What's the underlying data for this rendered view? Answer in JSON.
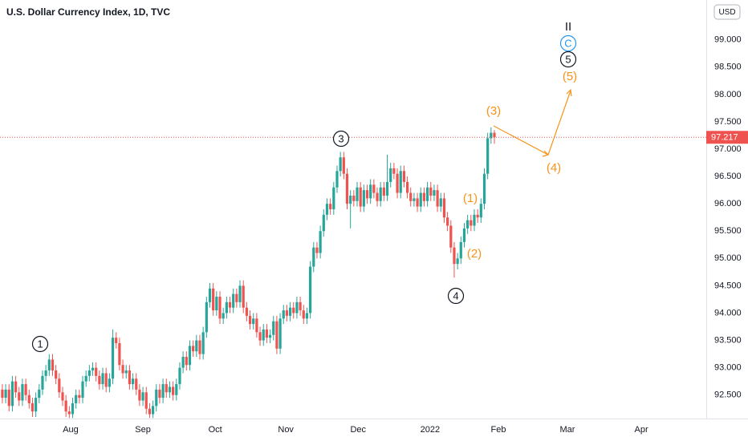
{
  "chart_data": {
    "type": "candlestick",
    "title": "U.S. Dollar Currency Index, 1D, TVC",
    "currency": "USD",
    "up_color": "#26a69a",
    "down_color": "#ef5350",
    "open": [
      92.6,
      92.45,
      92.6,
      92.3,
      92.75,
      92.55,
      92.4,
      92.7,
      92.5,
      92.35,
      92.2,
      92.45,
      92.6,
      92.85,
      92.95,
      93.15,
      92.95,
      92.8,
      92.55,
      92.4,
      92.2,
      92.15,
      92.35,
      92.5,
      92.45,
      92.75,
      92.85,
      92.95,
      93.0,
      92.85,
      92.7,
      92.9,
      92.65,
      92.8,
      93.55,
      93.45,
      93.05,
      92.9,
      92.95,
      92.7,
      92.8,
      92.6,
      92.4,
      92.55,
      92.25,
      92.15,
      92.3,
      92.6,
      92.45,
      92.7,
      92.55,
      92.65,
      92.5,
      92.7,
      93.0,
      93.2,
      93.05,
      93.4,
      93.3,
      93.5,
      93.25,
      93.65,
      94.2,
      94.45,
      94.05,
      94.3,
      93.9,
      94.0,
      94.2,
      94.1,
      94.35,
      94.2,
      94.5,
      94.1,
      93.95,
      93.8,
      93.9,
      93.65,
      93.5,
      93.7,
      93.55,
      93.6,
      93.85,
      93.35,
      93.9,
      94.05,
      93.95,
      94.1,
      94.0,
      94.2,
      94.05,
      93.9,
      94.0,
      94.85,
      95.2,
      95.1,
      95.5,
      95.8,
      96.0,
      95.9,
      96.3,
      96.6,
      96.85,
      96.55,
      96.0,
      96.15,
      96.05,
      96.3,
      95.95,
      96.25,
      96.1,
      96.35,
      96.2,
      96.05,
      96.3,
      96.15,
      96.4,
      96.65,
      96.55,
      96.2,
      96.6,
      96.4,
      96.2,
      96.05,
      96.1,
      95.95,
      96.2,
      96.05,
      96.3,
      96.15,
      96.25,
      95.95,
      96.1,
      95.75,
      95.6,
      95.2,
      94.9,
      95.0,
      95.3,
      95.55,
      95.7,
      95.6,
      95.8,
      95.75,
      96.0,
      96.55,
      97.2,
      97.3
    ],
    "high": [
      92.7,
      92.7,
      92.7,
      92.85,
      92.85,
      92.65,
      92.8,
      92.8,
      92.6,
      92.45,
      92.55,
      92.7,
      92.95,
      93.05,
      93.25,
      93.25,
      93.05,
      92.9,
      92.65,
      92.5,
      92.3,
      92.45,
      92.6,
      92.6,
      92.85,
      92.95,
      93.05,
      93.1,
      93.1,
      92.95,
      93.0,
      93.0,
      92.9,
      93.7,
      93.65,
      93.55,
      93.15,
      93.05,
      93.05,
      92.9,
      92.9,
      92.7,
      92.65,
      92.65,
      92.35,
      92.4,
      92.7,
      92.7,
      92.8,
      92.8,
      92.75,
      92.75,
      92.8,
      93.1,
      93.3,
      93.3,
      93.5,
      93.5,
      93.6,
      93.6,
      93.75,
      94.3,
      94.55,
      94.55,
      94.4,
      94.4,
      94.1,
      94.3,
      94.3,
      94.45,
      94.45,
      94.6,
      94.6,
      94.2,
      94.05,
      94.0,
      94.0,
      93.75,
      93.8,
      93.8,
      93.7,
      93.95,
      93.95,
      94.0,
      94.15,
      94.15,
      94.2,
      94.2,
      94.3,
      94.3,
      94.15,
      94.1,
      94.95,
      95.3,
      95.3,
      95.6,
      95.9,
      96.1,
      96.1,
      96.4,
      96.7,
      96.95,
      96.95,
      96.65,
      96.25,
      96.25,
      96.4,
      96.4,
      96.35,
      96.35,
      96.45,
      96.45,
      96.3,
      96.4,
      96.4,
      96.9,
      96.75,
      96.75,
      96.65,
      96.7,
      96.7,
      96.5,
      96.3,
      96.2,
      96.2,
      96.3,
      96.3,
      96.4,
      96.4,
      96.35,
      96.35,
      96.2,
      96.2,
      95.85,
      95.7,
      95.3,
      95.1,
      95.4,
      95.65,
      95.8,
      95.8,
      95.9,
      95.9,
      96.1,
      96.65,
      97.3,
      97.4,
      97.35
    ],
    "low": [
      92.35,
      92.35,
      92.2,
      92.2,
      92.45,
      92.3,
      92.3,
      92.4,
      92.25,
      92.1,
      92.1,
      92.35,
      92.5,
      92.75,
      92.85,
      92.85,
      92.7,
      92.45,
      92.3,
      92.1,
      92.08,
      92.08,
      92.25,
      92.35,
      92.35,
      92.65,
      92.75,
      92.85,
      92.75,
      92.6,
      92.6,
      92.55,
      92.55,
      92.7,
      93.35,
      92.95,
      92.8,
      92.8,
      92.6,
      92.6,
      92.5,
      92.3,
      92.3,
      92.15,
      92.08,
      92.08,
      92.2,
      92.35,
      92.35,
      92.45,
      92.45,
      92.4,
      92.4,
      92.6,
      92.9,
      92.95,
      92.95,
      93.2,
      93.2,
      93.15,
      93.15,
      93.55,
      94.1,
      93.95,
      93.95,
      93.8,
      93.8,
      93.9,
      94.0,
      94.0,
      94.1,
      94.1,
      94.0,
      93.85,
      93.7,
      93.7,
      93.55,
      93.4,
      93.4,
      93.45,
      93.45,
      93.5,
      93.25,
      93.25,
      93.8,
      93.85,
      93.85,
      93.9,
      93.9,
      93.95,
      93.8,
      93.8,
      93.9,
      94.75,
      95.0,
      95.0,
      95.4,
      95.7,
      95.8,
      95.8,
      96.2,
      96.5,
      96.45,
      95.9,
      95.55,
      95.95,
      95.95,
      95.85,
      95.85,
      96.0,
      96.0,
      96.1,
      95.95,
      95.95,
      96.05,
      96.05,
      96.3,
      96.45,
      96.1,
      96.1,
      96.3,
      96.1,
      95.95,
      95.95,
      95.85,
      95.85,
      95.95,
      95.95,
      96.05,
      96.05,
      95.85,
      95.85,
      95.65,
      95.5,
      95.1,
      94.65,
      94.8,
      94.9,
      95.2,
      95.45,
      95.5,
      95.5,
      95.65,
      95.65,
      95.9,
      96.45,
      97.1,
      97.1
    ],
    "close": [
      92.45,
      92.6,
      92.3,
      92.75,
      92.55,
      92.4,
      92.7,
      92.5,
      92.35,
      92.2,
      92.45,
      92.6,
      92.85,
      92.95,
      93.15,
      92.95,
      92.8,
      92.55,
      92.4,
      92.2,
      92.15,
      92.35,
      92.5,
      92.45,
      92.75,
      92.85,
      92.95,
      93.0,
      92.85,
      92.7,
      92.9,
      92.65,
      92.8,
      93.55,
      93.45,
      93.05,
      92.9,
      92.95,
      92.7,
      92.8,
      92.6,
      92.4,
      92.55,
      92.25,
      92.15,
      92.3,
      92.6,
      92.45,
      92.7,
      92.55,
      92.65,
      92.5,
      92.7,
      93.0,
      93.2,
      93.05,
      93.4,
      93.3,
      93.5,
      93.25,
      93.65,
      94.2,
      94.45,
      94.05,
      94.3,
      93.9,
      94.0,
      94.2,
      94.1,
      94.35,
      94.2,
      94.5,
      94.1,
      93.95,
      93.8,
      93.9,
      93.65,
      93.5,
      93.7,
      93.55,
      93.6,
      93.85,
      93.35,
      93.9,
      94.05,
      93.95,
      94.1,
      94.0,
      94.2,
      94.05,
      93.9,
      94.0,
      94.85,
      95.2,
      95.1,
      95.5,
      95.8,
      96.0,
      95.9,
      96.3,
      96.6,
      96.85,
      96.55,
      96.0,
      96.15,
      96.05,
      96.3,
      95.95,
      96.25,
      96.1,
      96.35,
      96.2,
      96.05,
      96.3,
      96.15,
      96.4,
      96.65,
      96.55,
      96.2,
      96.6,
      96.4,
      96.2,
      96.05,
      96.1,
      95.95,
      96.2,
      96.05,
      96.3,
      96.15,
      96.25,
      95.95,
      96.1,
      95.75,
      95.6,
      95.2,
      94.9,
      95.0,
      95.3,
      95.55,
      95.7,
      95.6,
      95.8,
      95.75,
      96.0,
      96.55,
      97.2,
      97.3,
      97.22
    ],
    "last_price": 97.217,
    "last_price_label": "97.217",
    "last_price_color": "#ef5350",
    "ylim": [
      92.07,
      99.73
    ],
    "yticks": [
      {
        "value": 92.5,
        "label": "92.500"
      },
      {
        "value": 93.0,
        "label": "93.000"
      },
      {
        "value": 93.5,
        "label": "93.500"
      },
      {
        "value": 94.0,
        "label": "94.000"
      },
      {
        "value": 94.5,
        "label": "94.500"
      },
      {
        "value": 95.0,
        "label": "95.000"
      },
      {
        "value": 95.5,
        "label": "95.500"
      },
      {
        "value": 96.0,
        "label": "96.000"
      },
      {
        "value": 96.5,
        "label": "96.500"
      },
      {
        "value": 97.0,
        "label": "97.000"
      },
      {
        "value": 97.5,
        "label": "97.500"
      },
      {
        "value": 98.0,
        "label": "98.000"
      },
      {
        "value": 98.5,
        "label": "98.500"
      },
      {
        "value": 99.0,
        "label": "99.000"
      }
    ],
    "xlim": [
      -0.7,
      210.3
    ],
    "xticks": [
      {
        "value": 20.4,
        "label": "Aug"
      },
      {
        "value": 42,
        "label": "Sep"
      },
      {
        "value": 63.6,
        "label": "Oct"
      },
      {
        "value": 84.7,
        "label": "Nov"
      },
      {
        "value": 106.3,
        "label": "Dec"
      },
      {
        "value": 127.8,
        "label": "2022"
      },
      {
        "value": 148.2,
        "label": "Feb"
      },
      {
        "value": 168.8,
        "label": "Mar"
      },
      {
        "value": 190.9,
        "label": "Apr"
      }
    ],
    "annotations": [
      {
        "text": "1",
        "style": "circle",
        "color": "#131722"
      },
      {
        "text": "3",
        "style": "circle",
        "color": "#131722"
      },
      {
        "text": "4",
        "style": "circle",
        "color": "#131722"
      },
      {
        "text": "5",
        "style": "circle",
        "color": "#131722"
      },
      {
        "text": "C",
        "style": "circle",
        "color": "#2196f3"
      },
      {
        "text": "II",
        "style": "plain",
        "color": "#131722"
      },
      {
        "text": "(1)",
        "style": "plain",
        "color": "#f7931a"
      },
      {
        "text": "(2)",
        "style": "plain",
        "color": "#f7931a"
      },
      {
        "text": "(3)",
        "style": "plain",
        "color": "#f7931a"
      },
      {
        "text": "(4)",
        "style": "plain",
        "color": "#f7931a"
      },
      {
        "text": "(5)",
        "style": "plain",
        "color": "#f7931a"
      }
    ]
  }
}
